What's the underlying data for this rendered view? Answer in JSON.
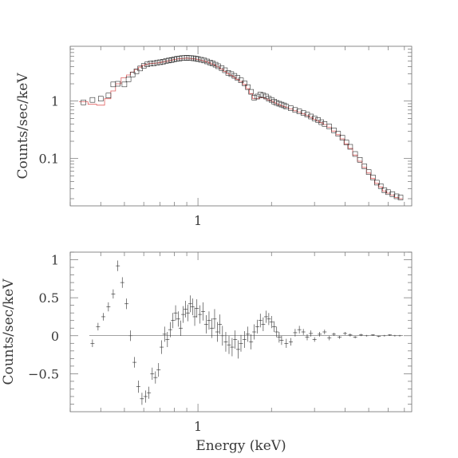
{
  "figure": {
    "xlabel": "Energy (keV)",
    "top_ylabel": "Counts/sec/keV",
    "bottom_ylabel": "Counts/sec/keV"
  },
  "colors": {
    "data": "#303030",
    "model": "#e06060",
    "axis": "#6f6f6f"
  },
  "chart_data": [
    {
      "type": "scatter",
      "title": "",
      "xlabel": "",
      "ylabel": "Counts/sec/keV",
      "xscale": "log",
      "yscale": "log",
      "xlim": [
        0.3,
        7.5
      ],
      "ylim": [
        0.015,
        9
      ],
      "x_ticks": [
        {
          "value": 1,
          "label": "1"
        }
      ],
      "y_ticks": [
        {
          "value": 1,
          "label": "1"
        },
        {
          "value": 0.1,
          "label": "0.1"
        }
      ],
      "legend": "none",
      "series": [
        {
          "role": "data",
          "x": [
            0.34,
            0.37,
            0.4,
            0.43,
            0.45,
            0.47,
            0.5,
            0.52,
            0.54,
            0.56,
            0.58,
            0.6,
            0.62,
            0.64,
            0.66,
            0.68,
            0.7,
            0.72,
            0.74,
            0.76,
            0.78,
            0.8,
            0.82,
            0.84,
            0.86,
            0.88,
            0.9,
            0.92,
            0.94,
            0.96,
            0.98,
            1.0,
            1.03,
            1.06,
            1.09,
            1.12,
            1.15,
            1.18,
            1.21,
            1.25,
            1.29,
            1.33,
            1.37,
            1.41,
            1.45,
            1.5,
            1.55,
            1.6,
            1.65,
            1.7,
            1.75,
            1.8,
            1.85,
            1.9,
            1.95,
            2.0,
            2.05,
            2.1,
            2.15,
            2.2,
            2.25,
            2.3,
            2.4,
            2.5,
            2.6,
            2.7,
            2.8,
            2.9,
            3.0,
            3.1,
            3.2,
            3.3,
            3.45,
            3.6,
            3.75,
            3.9,
            4.05,
            4.2,
            4.4,
            4.6,
            4.8,
            5.0,
            5.2,
            5.4,
            5.6,
            5.8,
            6.0,
            6.25,
            6.5,
            6.75
          ],
          "y": [
            0.95,
            1.05,
            1.1,
            1.25,
            1.95,
            2.0,
            1.95,
            2.4,
            2.9,
            3.3,
            3.7,
            4.1,
            4.35,
            4.5,
            4.55,
            4.65,
            4.75,
            4.85,
            5.0,
            5.1,
            5.2,
            5.35,
            5.45,
            5.5,
            5.6,
            5.65,
            5.7,
            5.65,
            5.6,
            5.55,
            5.5,
            5.4,
            5.25,
            5.1,
            4.9,
            4.7,
            4.5,
            4.3,
            4.05,
            3.75,
            3.45,
            3.1,
            2.95,
            2.75,
            2.55,
            2.3,
            2.05,
            1.75,
            1.45,
            1.15,
            1.2,
            1.3,
            1.25,
            1.2,
            1.1,
            1.05,
            0.98,
            0.93,
            0.9,
            0.87,
            0.84,
            0.8,
            0.75,
            0.7,
            0.66,
            0.62,
            0.58,
            0.54,
            0.5,
            0.47,
            0.43,
            0.4,
            0.36,
            0.31,
            0.27,
            0.23,
            0.19,
            0.16,
            0.12,
            0.095,
            0.073,
            0.058,
            0.047,
            0.038,
            0.033,
            0.028,
            0.026,
            0.024,
            0.022,
            0.021
          ]
        },
        {
          "role": "model",
          "x": [
            0.34,
            0.37,
            0.4,
            0.43,
            0.45,
            0.47,
            0.5,
            0.52,
            0.54,
            0.56,
            0.58,
            0.6,
            0.62,
            0.64,
            0.66,
            0.68,
            0.7,
            0.72,
            0.74,
            0.76,
            0.78,
            0.8,
            0.82,
            0.84,
            0.86,
            0.88,
            0.9,
            0.92,
            0.94,
            0.96,
            0.98,
            1.0,
            1.03,
            1.06,
            1.09,
            1.12,
            1.15,
            1.18,
            1.21,
            1.25,
            1.29,
            1.33,
            1.37,
            1.41,
            1.45,
            1.5,
            1.55,
            1.6,
            1.65,
            1.7,
            1.75,
            1.8,
            1.85,
            1.9,
            1.95,
            2.0,
            2.05,
            2.1,
            2.15,
            2.2,
            2.25,
            2.3,
            2.4,
            2.5,
            2.6,
            2.7,
            2.8,
            2.9,
            3.0,
            3.1,
            3.2,
            3.3,
            3.45,
            3.6,
            3.75,
            3.9,
            4.05,
            4.2,
            4.4,
            4.6,
            4.8,
            5.0,
            5.2,
            5.4,
            5.6,
            5.8,
            6.0,
            6.25,
            6.5,
            6.75
          ],
          "y": [
            0.97,
            0.88,
            0.85,
            1.1,
            1.5,
            2.0,
            2.55,
            2.85,
            3.2,
            3.55,
            3.9,
            4.2,
            4.4,
            4.5,
            4.55,
            4.6,
            4.7,
            4.8,
            4.9,
            5.05,
            5.15,
            5.3,
            5.4,
            5.45,
            5.5,
            5.55,
            5.6,
            5.55,
            5.5,
            5.45,
            5.4,
            5.3,
            5.15,
            5.0,
            4.8,
            4.6,
            4.4,
            4.15,
            3.9,
            3.6,
            3.3,
            3.0,
            2.8,
            2.6,
            2.4,
            2.2,
            1.95,
            1.65,
            1.35,
            1.1,
            1.1,
            1.15,
            1.15,
            1.1,
            1.05,
            1.0,
            0.95,
            0.9,
            0.87,
            0.84,
            0.81,
            0.78,
            0.73,
            0.68,
            0.64,
            0.6,
            0.56,
            0.52,
            0.48,
            0.45,
            0.42,
            0.39,
            0.35,
            0.3,
            0.26,
            0.22,
            0.18,
            0.15,
            0.115,
            0.09,
            0.07,
            0.056,
            0.045,
            0.037,
            0.032,
            0.027,
            0.025,
            0.023,
            0.021,
            0.02
          ]
        }
      ]
    },
    {
      "type": "scatter",
      "title": "",
      "xlabel": "Energy (keV)",
      "ylabel": "Counts/sec/keV",
      "xscale": "log",
      "xlim": [
        0.3,
        7.5
      ],
      "ylim": [
        -1.0,
        1.1
      ],
      "x_ticks": [
        {
          "value": 1,
          "label": "1"
        }
      ],
      "y_ticks": [
        {
          "value": 1,
          "label": "1"
        },
        {
          "value": 0.5,
          "label": "0.5"
        },
        {
          "value": 0,
          "label": "0"
        },
        {
          "value": -0.5,
          "label": "−0.5"
        }
      ],
      "zero_line": true,
      "legend": "none",
      "series": [
        {
          "role": "residuals",
          "x": [
            0.37,
            0.39,
            0.41,
            0.43,
            0.45,
            0.47,
            0.49,
            0.51,
            0.53,
            0.55,
            0.57,
            0.59,
            0.61,
            0.63,
            0.65,
            0.67,
            0.69,
            0.71,
            0.73,
            0.75,
            0.77,
            0.79,
            0.81,
            0.83,
            0.85,
            0.87,
            0.89,
            0.91,
            0.93,
            0.95,
            0.97,
            0.99,
            1.02,
            1.05,
            1.08,
            1.11,
            1.14,
            1.17,
            1.2,
            1.23,
            1.26,
            1.3,
            1.34,
            1.38,
            1.42,
            1.46,
            1.5,
            1.55,
            1.6,
            1.65,
            1.7,
            1.75,
            1.8,
            1.85,
            1.9,
            1.95,
            2.0,
            2.05,
            2.1,
            2.15,
            2.2,
            2.3,
            2.4,
            2.5,
            2.6,
            2.7,
            2.8,
            2.9,
            3.0,
            3.15,
            3.3,
            3.45,
            3.6,
            3.8,
            4.0,
            4.2,
            4.4,
            4.65,
            4.9,
            5.2,
            5.5,
            5.8,
            6.1,
            6.4,
            6.7
          ],
          "y": [
            -0.1,
            0.12,
            0.25,
            0.38,
            0.55,
            0.92,
            0.7,
            0.42,
            0.0,
            -0.35,
            -0.67,
            -0.83,
            -0.8,
            -0.75,
            -0.5,
            -0.55,
            -0.45,
            -0.15,
            0.02,
            -0.05,
            0.08,
            0.2,
            0.3,
            0.22,
            0.1,
            0.28,
            0.35,
            0.3,
            0.42,
            0.38,
            0.25,
            0.36,
            0.28,
            0.32,
            0.15,
            0.2,
            0.1,
            0.22,
            0.05,
            0.15,
            0.0,
            -0.08,
            -0.12,
            -0.15,
            -0.05,
            -0.18,
            -0.1,
            -0.05,
            0.02,
            -0.08,
            0.05,
            0.12,
            0.2,
            0.15,
            0.25,
            0.22,
            0.18,
            0.12,
            0.05,
            -0.02,
            -0.06,
            -0.1,
            -0.08,
            0.04,
            0.08,
            0.05,
            -0.02,
            0.03,
            -0.05,
            0.02,
            0.05,
            -0.03,
            0.02,
            -0.02,
            0.03,
            0.01,
            -0.02,
            0.01,
            0.0,
            0.01,
            -0.01,
            0.0,
            0.01,
            0.0,
            0.0
          ],
          "err": [
            0.05,
            0.05,
            0.05,
            0.06,
            0.06,
            0.07,
            0.07,
            0.07,
            0.07,
            0.07,
            0.08,
            0.08,
            0.08,
            0.08,
            0.08,
            0.08,
            0.09,
            0.09,
            0.1,
            0.1,
            0.1,
            0.1,
            0.1,
            0.1,
            0.1,
            0.11,
            0.11,
            0.11,
            0.11,
            0.11,
            0.12,
            0.12,
            0.12,
            0.12,
            0.12,
            0.12,
            0.13,
            0.13,
            0.13,
            0.13,
            0.13,
            0.13,
            0.12,
            0.12,
            0.12,
            0.12,
            0.11,
            0.11,
            0.1,
            0.1,
            0.1,
            0.09,
            0.09,
            0.09,
            0.08,
            0.08,
            0.08,
            0.07,
            0.07,
            0.07,
            0.06,
            0.06,
            0.05,
            0.05,
            0.05,
            0.04,
            0.04,
            0.04,
            0.03,
            0.03,
            0.03,
            0.03,
            0.02,
            0.02,
            0.02,
            0.02,
            0.015,
            0.015,
            0.01,
            0.01,
            0.01,
            0.01,
            0.01,
            0.01,
            0.01
          ]
        }
      ]
    }
  ]
}
